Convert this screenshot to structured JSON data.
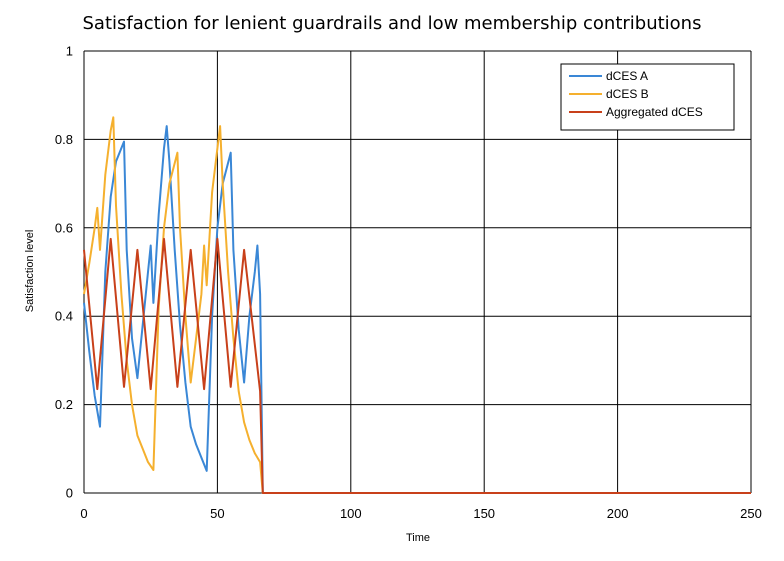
{
  "chart_data": {
    "type": "line",
    "title": "Satisfaction for lenient guardrails and low membership contributions",
    "xlabel": "Time",
    "ylabel": "Satisfaction level",
    "xlim": [
      0,
      250
    ],
    "ylim": [
      0,
      1
    ],
    "x_ticks": [
      "0",
      "50",
      "100",
      "150",
      "200",
      "250"
    ],
    "y_ticks": [
      "0",
      "0.2",
      "0.4",
      "0.6",
      "0.8",
      "1"
    ],
    "grid": true,
    "legend_position": "top-right",
    "series": [
      {
        "name": "dCES A",
        "color": "#3a87d6",
        "points": [
          [
            0,
            0.43
          ],
          [
            2,
            0.32
          ],
          [
            4,
            0.22
          ],
          [
            6,
            0.15
          ],
          [
            8,
            0.5
          ],
          [
            10,
            0.67
          ],
          [
            12,
            0.75
          ],
          [
            15,
            0.795
          ],
          [
            16,
            0.55
          ],
          [
            18,
            0.35
          ],
          [
            20,
            0.26
          ],
          [
            22,
            0.38
          ],
          [
            24,
            0.5
          ],
          [
            25,
            0.56
          ],
          [
            26,
            0.43
          ],
          [
            28,
            0.63
          ],
          [
            30,
            0.78
          ],
          [
            31,
            0.83
          ],
          [
            32,
            0.75
          ],
          [
            34,
            0.55
          ],
          [
            36,
            0.38
          ],
          [
            38,
            0.25
          ],
          [
            40,
            0.15
          ],
          [
            42,
            0.11
          ],
          [
            44,
            0.08
          ],
          [
            46,
            0.05
          ],
          [
            48,
            0.4
          ],
          [
            50,
            0.6
          ],
          [
            52,
            0.7
          ],
          [
            55,
            0.77
          ],
          [
            56,
            0.55
          ],
          [
            58,
            0.37
          ],
          [
            60,
            0.25
          ],
          [
            62,
            0.4
          ],
          [
            64,
            0.5
          ],
          [
            65,
            0.56
          ],
          [
            66,
            0.45
          ],
          [
            67,
            0.0
          ],
          [
            250,
            0.0
          ]
        ]
      },
      {
        "name": "dCES B",
        "color": "#f5b02e",
        "points": [
          [
            0,
            0.45
          ],
          [
            2,
            0.52
          ],
          [
            4,
            0.6
          ],
          [
            5,
            0.645
          ],
          [
            6,
            0.55
          ],
          [
            8,
            0.72
          ],
          [
            10,
            0.82
          ],
          [
            11,
            0.85
          ],
          [
            12,
            0.65
          ],
          [
            14,
            0.45
          ],
          [
            16,
            0.3
          ],
          [
            18,
            0.2
          ],
          [
            20,
            0.13
          ],
          [
            22,
            0.1
          ],
          [
            24,
            0.07
          ],
          [
            26,
            0.052
          ],
          [
            28,
            0.42
          ],
          [
            30,
            0.6
          ],
          [
            32,
            0.7
          ],
          [
            35,
            0.77
          ],
          [
            36,
            0.6
          ],
          [
            38,
            0.4
          ],
          [
            40,
            0.25
          ],
          [
            42,
            0.35
          ],
          [
            44,
            0.45
          ],
          [
            45,
            0.56
          ],
          [
            46,
            0.47
          ],
          [
            48,
            0.68
          ],
          [
            50,
            0.78
          ],
          [
            51,
            0.83
          ],
          [
            52,
            0.7
          ],
          [
            54,
            0.5
          ],
          [
            56,
            0.35
          ],
          [
            58,
            0.23
          ],
          [
            60,
            0.16
          ],
          [
            62,
            0.12
          ],
          [
            64,
            0.09
          ],
          [
            66,
            0.07
          ],
          [
            67,
            0.0
          ],
          [
            250,
            0.0
          ]
        ]
      },
      {
        "name": "Aggregated dCES",
        "color": "#c8401a",
        "points": [
          [
            0,
            0.55
          ],
          [
            5,
            0.235
          ],
          [
            10,
            0.575
          ],
          [
            15,
            0.24
          ],
          [
            20,
            0.55
          ],
          [
            25,
            0.235
          ],
          [
            30,
            0.575
          ],
          [
            35,
            0.24
          ],
          [
            40,
            0.55
          ],
          [
            45,
            0.235
          ],
          [
            50,
            0.575
          ],
          [
            55,
            0.24
          ],
          [
            60,
            0.55
          ],
          [
            66,
            0.23
          ],
          [
            67,
            0.0
          ],
          [
            250,
            0.0
          ]
        ]
      }
    ]
  }
}
